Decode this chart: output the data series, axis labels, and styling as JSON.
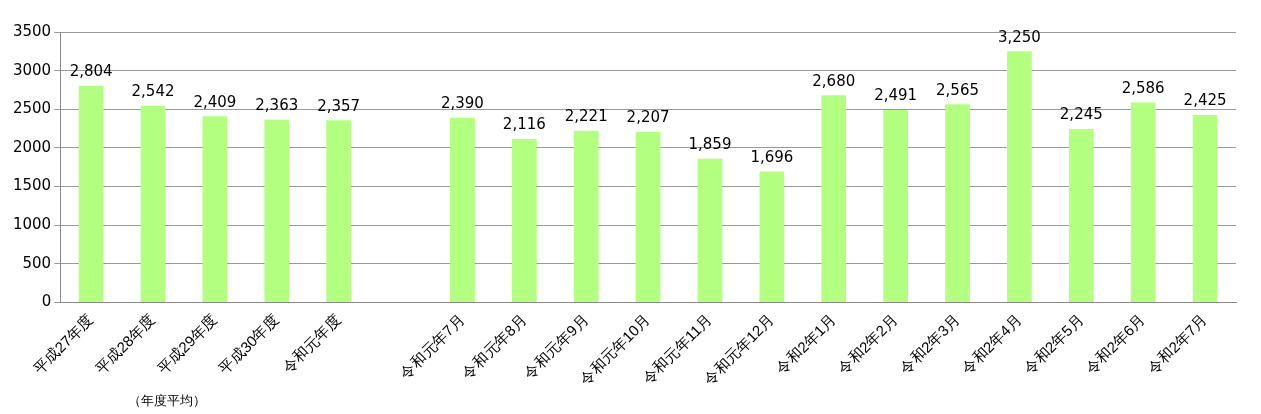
{
  "chart_data": {
    "type": "bar",
    "categories": [
      "平成27年度",
      "平成28年度",
      "平成29年度",
      "平成30年度",
      "令和元年度",
      null,
      "令和元年7月",
      "令和元年8月",
      "令和元年9月",
      "令和元年10月",
      "令和元年11月",
      "令和元年12月",
      "令和2年1月",
      "令和2年2月",
      "令和2年3月",
      "令和2年4月",
      "令和2年5月",
      "令和2年6月",
      "令和2年7月"
    ],
    "values": [
      2804,
      2542,
      2409,
      2363,
      2357,
      null,
      2390,
      2116,
      2221,
      2207,
      1859,
      1696,
      2680,
      2491,
      2565,
      3250,
      2245,
      2586,
      2425
    ],
    "value_labels": [
      "2,804",
      "2,542",
      "2,409",
      "2,363",
      "2,357",
      null,
      "2,390",
      "2,116",
      "2,221",
      "2,207",
      "1,859",
      "1,696",
      "2,680",
      "2,491",
      "2,565",
      "3,250",
      "2,245",
      "2,586",
      "2,425"
    ],
    "color": "#b3ff80",
    "ylim": [
      0,
      3500
    ],
    "yticks": [
      0,
      500,
      1000,
      1500,
      2000,
      2500,
      3000,
      3500
    ],
    "grid": "y",
    "legend": false,
    "annotations": [
      "（年度平均）"
    ]
  }
}
